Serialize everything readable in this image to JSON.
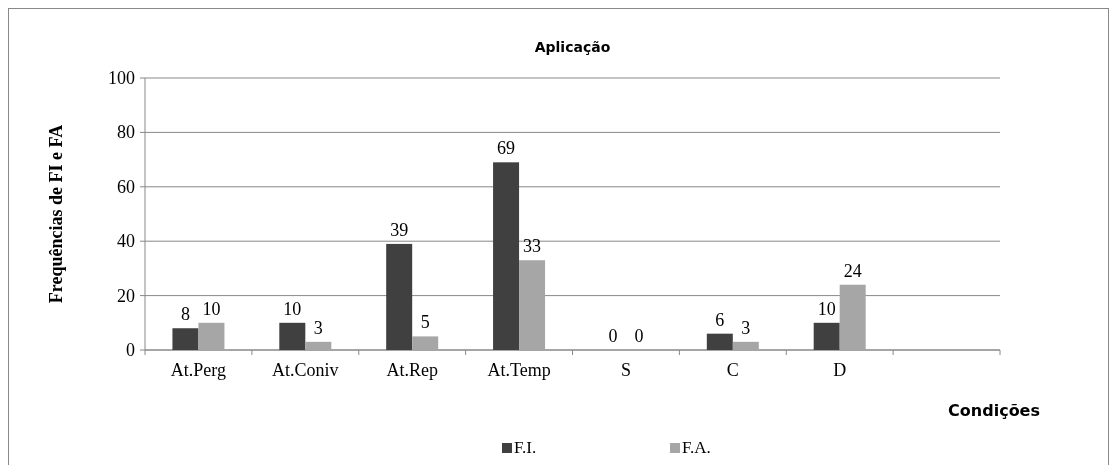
{
  "chart_data": {
    "type": "bar",
    "title": "Aplicação",
    "xlabel": "Condições",
    "ylabel": "Frequências  de FI e FA",
    "categories": [
      "At.Perg",
      "At.Coniv",
      "At.Rep",
      "At.Temp",
      "S",
      "C",
      "D",
      null
    ],
    "series": [
      {
        "name": "F.I.",
        "color": "#404040",
        "values": [
          8,
          10,
          39,
          69,
          0,
          6,
          10,
          null
        ]
      },
      {
        "name": "F.A.",
        "color": "#a6a6a6",
        "values": [
          10,
          3,
          5,
          33,
          0,
          3,
          24,
          null
        ]
      }
    ],
    "ylim": [
      0,
      100
    ],
    "yticks": [
      0,
      20,
      40,
      60,
      80,
      100
    ],
    "grid": "y",
    "legend": "bottom",
    "data_labels": true
  }
}
